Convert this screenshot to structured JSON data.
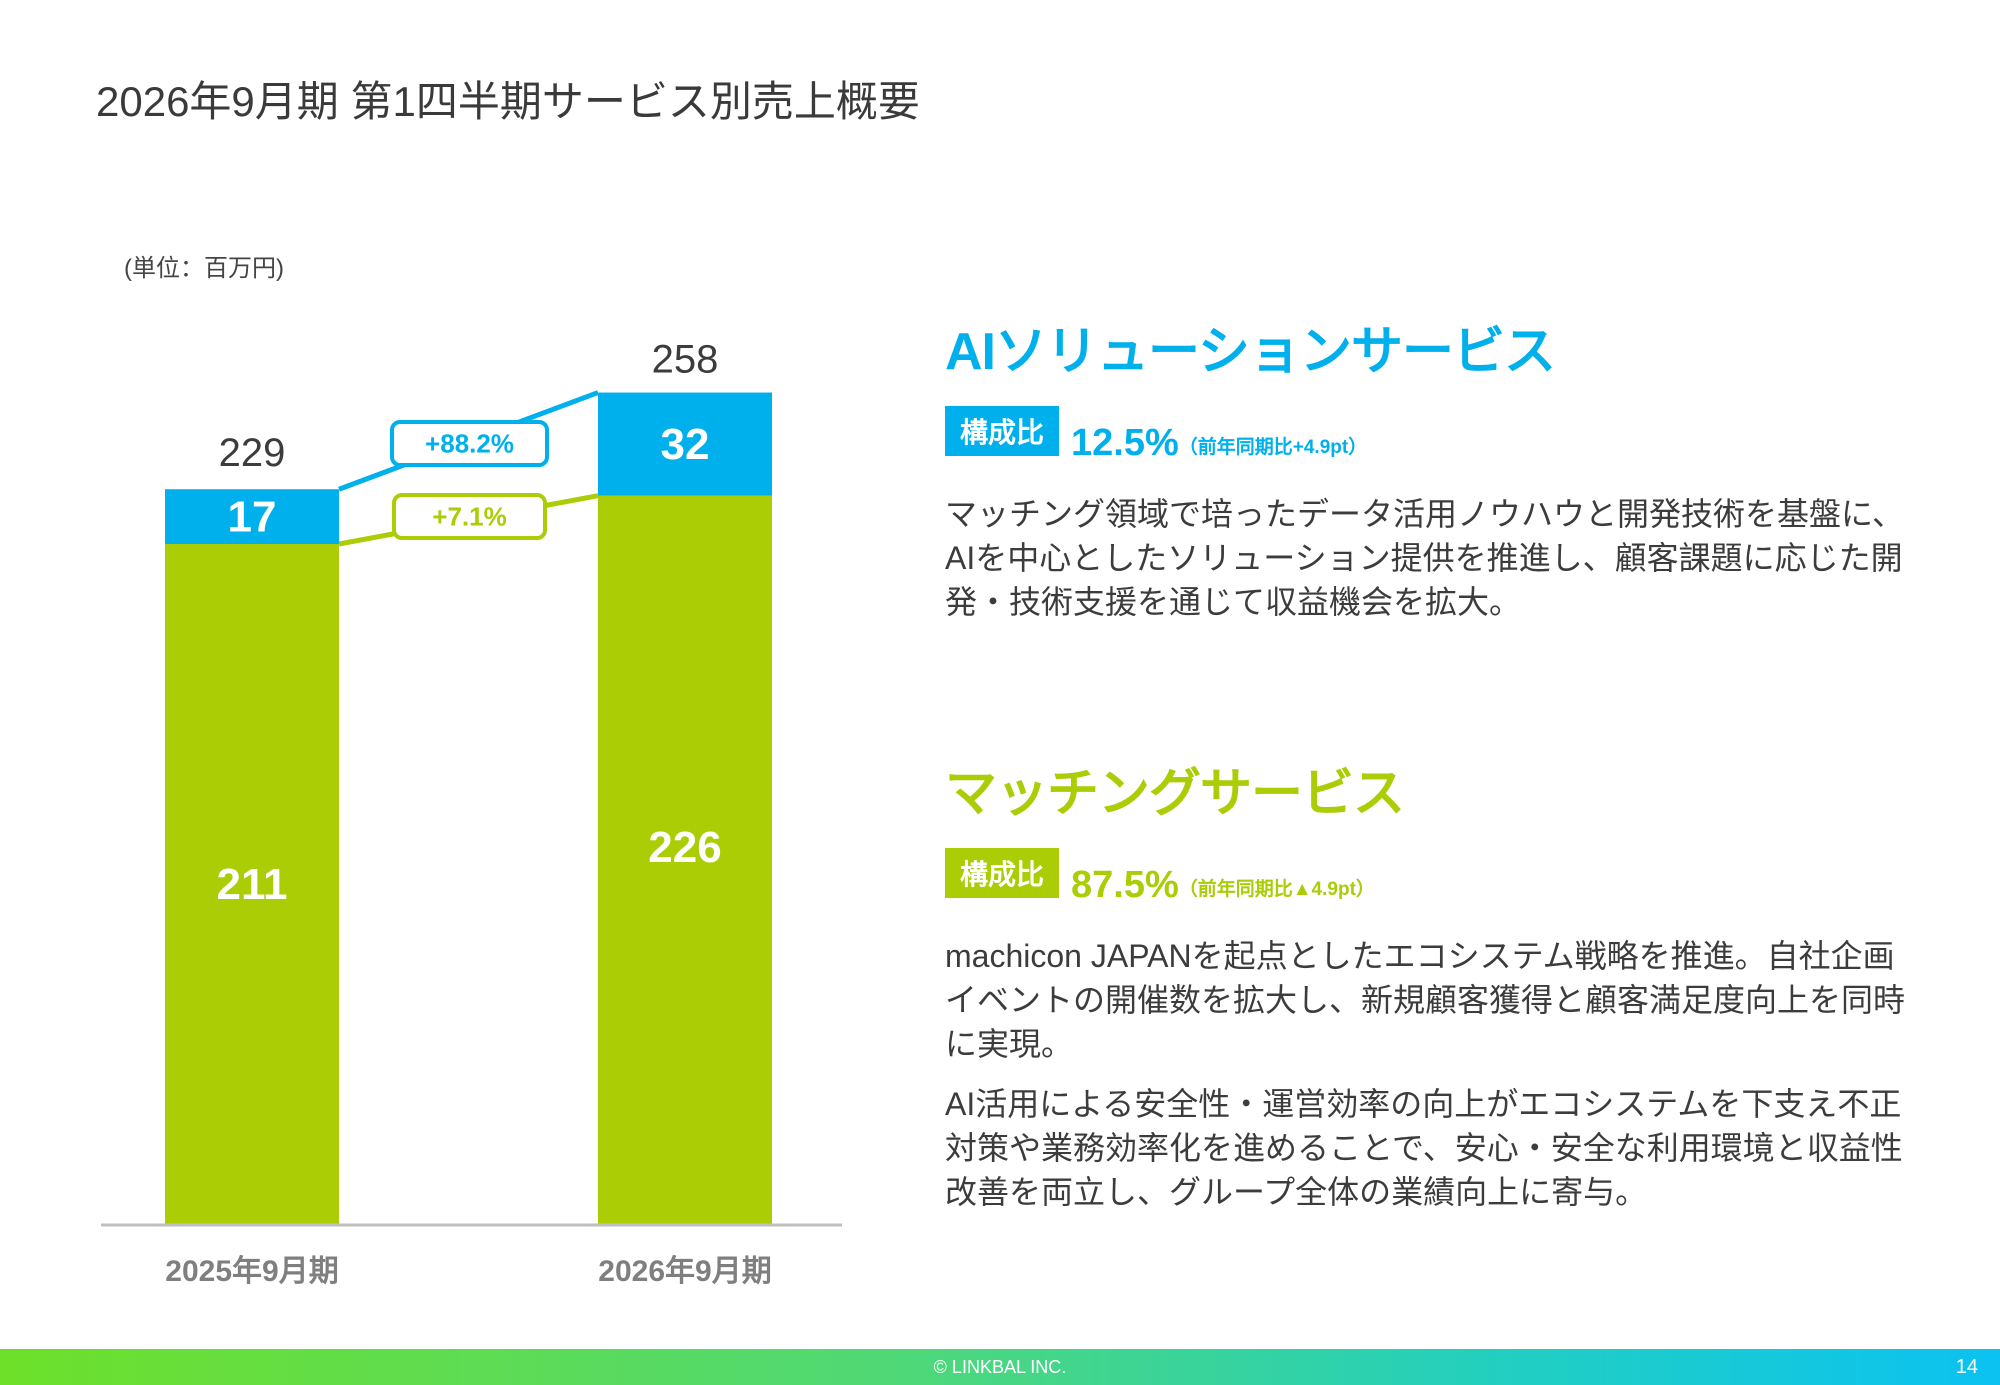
{
  "header": {
    "title": "2026年9月期 第1四半期サービス別売上概要",
    "unit": "(単位：百万円)"
  },
  "colors": {
    "ai": "#00b0ec",
    "matching": "#aacd06",
    "text": "#3c3c3c",
    "category_label": "#7f7f7f",
    "axis": "#bfbfbf"
  },
  "chart_data": {
    "type": "bar",
    "stacked": true,
    "title": "",
    "xlabel": "",
    "ylabel": "",
    "unit": "百万円",
    "categories": [
      "2025年9月期",
      "2026年9月期"
    ],
    "series": [
      {
        "name": "マッチングサービス",
        "key": "matching",
        "values": [
          211,
          226
        ]
      },
      {
        "name": "AIソリューションサービス",
        "key": "ai",
        "values": [
          17,
          32
        ]
      }
    ],
    "totals": [
      229,
      258
    ],
    "ylim": [
      0,
      260
    ],
    "grid": false,
    "legend": "none",
    "annotations": [
      {
        "series": "AIソリューションサービス",
        "text": "+88.2%"
      },
      {
        "series": "マッチングサービス",
        "text": "+7.1%"
      }
    ]
  },
  "services": [
    {
      "key": "ai",
      "title": "AIソリューションサービス",
      "ratio_badge": "構成比",
      "ratio_value": "12.5%",
      "ratio_note": "（前年同期比+4.9pt）",
      "body": [
        "マッチング領域で培ったデータ活用ノウハウと開発技術を基盤に、AIを中心としたソリューション提供を推進し、顧客課題に応じた開発・技術支援を通じて収益機会を拡大。"
      ]
    },
    {
      "key": "matching",
      "title": "マッチングサービス",
      "ratio_badge": "構成比",
      "ratio_value": "87.5%",
      "ratio_note": "（前年同期比▲4.9pt）",
      "body": [
        "machicon JAPANを起点としたエコシステム戦略を推進。自社企画イベントの開催数を拡大し、新規顧客獲得と顧客満足度向上を同時に実現。",
        "AI活用による安全性・運営効率の向上がエコシステムを下支え不正対策や業務効率化を進めることで、安心・安全な利用環境と収益性改善を両立し、グループ全体の業績向上に寄与。"
      ]
    }
  ],
  "footer": {
    "copyright": "© LINKBAL INC.",
    "page_number": "14"
  }
}
